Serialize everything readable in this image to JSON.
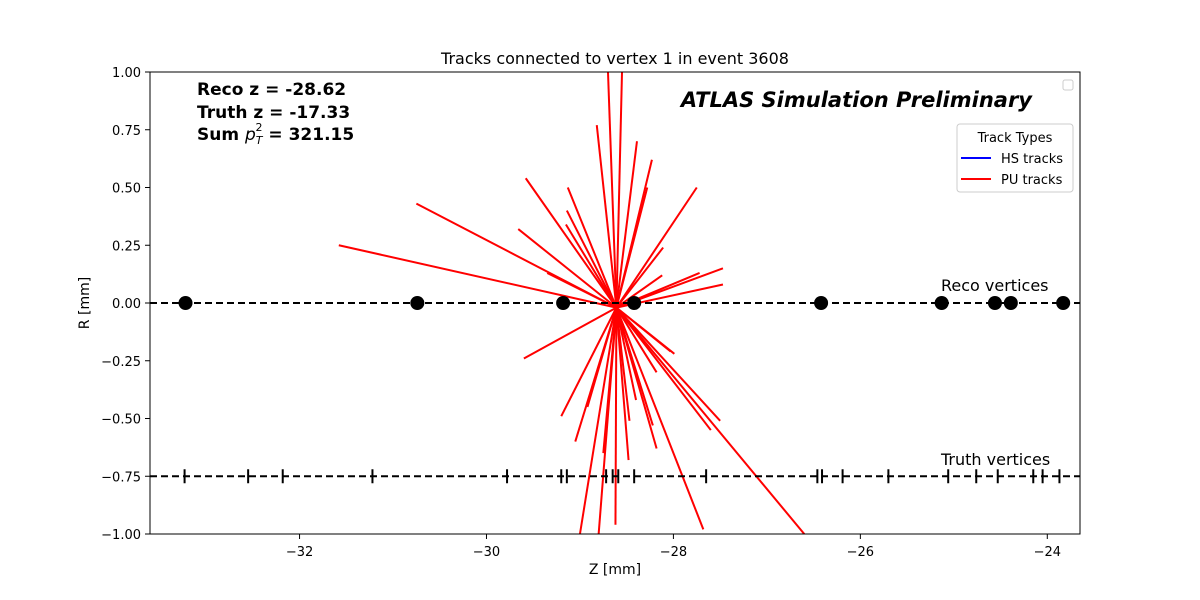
{
  "chart_data": {
    "type": "line",
    "title": "Tracks connected to vertex 1 in event 3608",
    "xlabel": "Z [mm]",
    "ylabel": "R [mm]",
    "xlim": [
      -33.6,
      -23.65
    ],
    "ylim": [
      -1.0,
      1.0
    ],
    "xticks": [
      -32,
      -30,
      -28,
      -26,
      -24
    ],
    "xtick_labels": [
      "−32",
      "−30",
      "−28",
      "−26",
      "−24"
    ],
    "yticks": [
      1.0,
      0.75,
      0.5,
      0.25,
      0.0,
      -0.25,
      -0.5,
      -0.75,
      -1.0
    ],
    "ytick_labels": [
      "1.00",
      "0.75",
      "0.50",
      "0.25",
      "0.00",
      "−0.25",
      "−0.50",
      "−0.75",
      "−1.00"
    ],
    "grid": false,
    "annotations": {
      "reco_z": "Reco z = -28.62",
      "truth_z": "Truth z = -17.33",
      "sum_pt_prefix": "Sum ",
      "sum_pt_value": " = 321.15",
      "atlas": "ATLAS Simulation Preliminary",
      "reco_label": "Reco vertices",
      "truth_label": "Truth vertices"
    },
    "legend": {
      "title": "Track Types",
      "placement": "upper right",
      "entries": [
        {
          "label": "HS tracks",
          "color": "#0000ff"
        },
        {
          "label": "PU tracks",
          "color": "#ff0000"
        }
      ]
    },
    "reco_vertices": {
      "r": 0.0,
      "z": [
        -33.22,
        -30.74,
        -29.18,
        -28.42,
        -26.42,
        -25.13,
        -24.56,
        -24.39,
        -23.83
      ]
    },
    "truth_vertices": {
      "r": -0.75,
      "z": [
        -33.23,
        -32.55,
        -32.18,
        -31.22,
        -29.78,
        -29.2,
        -29.14,
        -28.72,
        -28.65,
        -28.59,
        -28.42,
        -27.65,
        -26.46,
        -26.41,
        -26.19,
        -25.7,
        -25.06,
        -24.76,
        -24.53,
        -24.15,
        -24.05,
        -23.87
      ]
    },
    "series": [
      {
        "name": "PU tracks",
        "color": "#ff0000",
        "segments": [
          [
            [
              -28.61,
              -0.02
            ],
            [
              -31.58,
              0.25
            ]
          ],
          [
            [
              -28.61,
              -0.02
            ],
            [
              -30.75,
              0.43
            ]
          ],
          [
            [
              -28.61,
              -0.02
            ],
            [
              -29.58,
              0.54
            ]
          ],
          [
            [
              -28.61,
              -0.02
            ],
            [
              -29.66,
              0.32
            ]
          ],
          [
            [
              -28.61,
              -0.02
            ],
            [
              -29.35,
              0.13
            ]
          ],
          [
            [
              -28.61,
              -0.02
            ],
            [
              -29.15,
              0.34
            ]
          ],
          [
            [
              -28.61,
              -0.02
            ],
            [
              -29.14,
              0.4
            ]
          ],
          [
            [
              -28.61,
              -0.02
            ],
            [
              -29.13,
              0.5
            ]
          ],
          [
            [
              -28.61,
              -0.02
            ],
            [
              -28.82,
              0.77
            ]
          ],
          [
            [
              -28.61,
              -0.02
            ],
            [
              -28.7,
              1.0
            ]
          ],
          [
            [
              -28.61,
              -0.02
            ],
            [
              -28.55,
              1.0
            ]
          ],
          [
            [
              -28.61,
              -0.02
            ],
            [
              -28.39,
              0.7
            ]
          ],
          [
            [
              -28.61,
              -0.02
            ],
            [
              -28.23,
              0.62
            ]
          ],
          [
            [
              -28.61,
              -0.02
            ],
            [
              -28.28,
              0.5
            ]
          ],
          [
            [
              -28.61,
              -0.02
            ],
            [
              -28.11,
              0.24
            ]
          ],
          [
            [
              -28.61,
              -0.02
            ],
            [
              -28.12,
              0.12
            ]
          ],
          [
            [
              -28.61,
              -0.02
            ],
            [
              -27.75,
              0.5
            ]
          ],
          [
            [
              -28.61,
              -0.02
            ],
            [
              -27.47,
              0.15
            ]
          ],
          [
            [
              -28.61,
              -0.02
            ],
            [
              -27.47,
              0.08
            ]
          ],
          [
            [
              -28.61,
              -0.02
            ],
            [
              -27.72,
              0.13
            ]
          ],
          [
            [
              -28.61,
              -0.02
            ],
            [
              -28.03,
              -0.21
            ]
          ],
          [
            [
              -28.61,
              -0.02
            ],
            [
              -27.99,
              -0.22
            ]
          ],
          [
            [
              -28.61,
              -0.02
            ],
            [
              -27.5,
              -0.51
            ]
          ],
          [
            [
              -28.61,
              -0.02
            ],
            [
              -27.6,
              -0.55
            ]
          ],
          [
            [
              -28.61,
              -0.02
            ],
            [
              -28.18,
              -0.63
            ]
          ],
          [
            [
              -28.61,
              -0.02
            ],
            [
              -28.22,
              -0.53
            ]
          ],
          [
            [
              -28.61,
              -0.02
            ],
            [
              -28.47,
              -0.51
            ]
          ],
          [
            [
              -28.61,
              -0.02
            ],
            [
              -28.48,
              -0.68
            ]
          ],
          [
            [
              -28.61,
              -0.02
            ],
            [
              -28.62,
              -0.96
            ]
          ],
          [
            [
              -28.61,
              -0.02
            ],
            [
              -28.75,
              -0.65
            ]
          ],
          [
            [
              -28.61,
              -0.02
            ],
            [
              -28.92,
              -0.45
            ]
          ],
          [
            [
              -28.61,
              -0.02
            ],
            [
              -29.05,
              -0.6
            ]
          ],
          [
            [
              -28.61,
              -0.02
            ],
            [
              -29.2,
              -0.49
            ]
          ],
          [
            [
              -28.61,
              -0.02
            ],
            [
              -29.6,
              -0.24
            ]
          ],
          [
            [
              -28.61,
              -0.02
            ],
            [
              -28.8,
              -1.0
            ]
          ],
          [
            [
              -28.61,
              -0.02
            ],
            [
              -29.0,
              -1.0
            ]
          ],
          [
            [
              -28.61,
              -0.02
            ],
            [
              -28.4,
              -0.42
            ]
          ],
          [
            [
              -28.61,
              -0.02
            ],
            [
              -28.18,
              -0.3
            ]
          ],
          [
            [
              -28.61,
              -0.02
            ],
            [
              -27.68,
              -0.98
            ]
          ],
          [
            [
              -28.61,
              -0.02
            ],
            [
              -26.6,
              -1.0
            ]
          ]
        ]
      }
    ]
  }
}
